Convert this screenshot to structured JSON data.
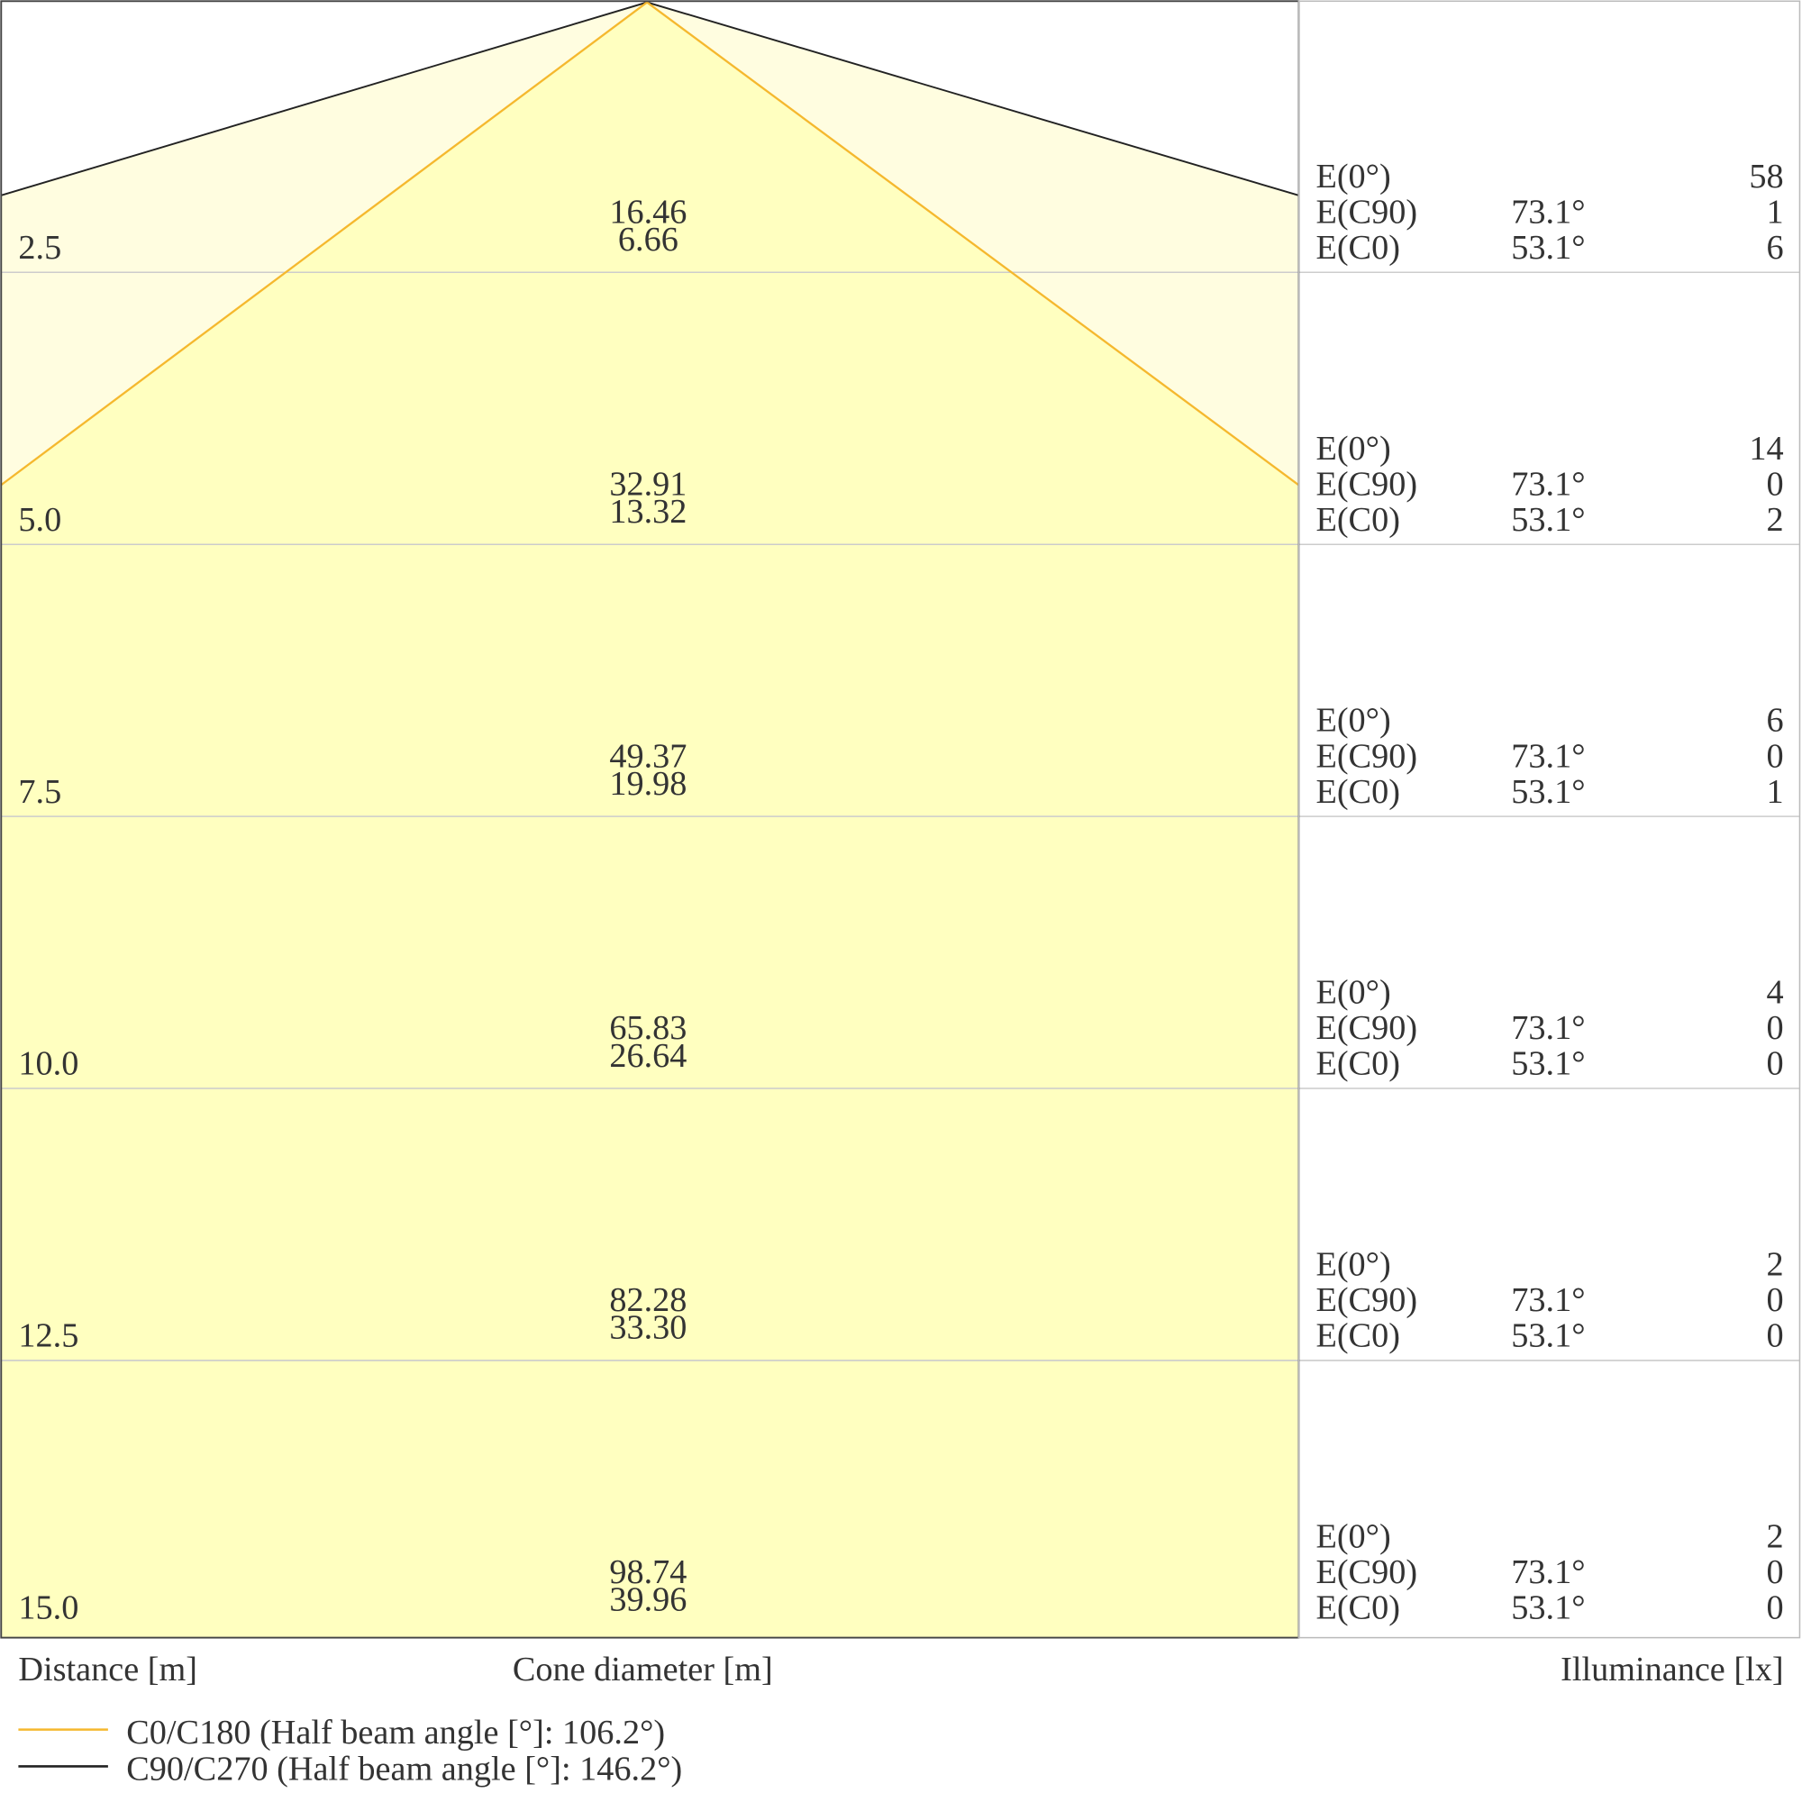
{
  "row_labels": {
    "e0": "E(0°)",
    "c90": "E(C90)",
    "c0": "E(C0)"
  },
  "angles": {
    "c90": "73.1°",
    "c0": "53.1°"
  },
  "rows": [
    {
      "distance": "2.5",
      "cone_c90": "16.46",
      "cone_c0": "6.66",
      "e0": "58",
      "c90": "1",
      "c0": "6"
    },
    {
      "distance": "5.0",
      "cone_c90": "32.91",
      "cone_c0": "13.32",
      "e0": "14",
      "c90": "0",
      "c0": "2"
    },
    {
      "distance": "7.5",
      "cone_c90": "49.37",
      "cone_c0": "19.98",
      "e0": "6",
      "c90": "0",
      "c0": "1"
    },
    {
      "distance": "10.0",
      "cone_c90": "65.83",
      "cone_c0": "26.64",
      "e0": "4",
      "c90": "0",
      "c0": "0"
    },
    {
      "distance": "12.5",
      "cone_c90": "82.28",
      "cone_c0": "33.30",
      "e0": "2",
      "c90": "0",
      "c0": "0"
    },
    {
      "distance": "15.0",
      "cone_c90": "98.74",
      "cone_c0": "39.96",
      "e0": "2",
      "c90": "0",
      "c0": "0"
    }
  ],
  "footer": {
    "distance": "Distance [m]",
    "cone": "Cone diameter [m]",
    "illuminance": "Illuminance [lx]"
  },
  "legend": {
    "c0": "C0/C180 (Half beam angle [°]: 106.2°)",
    "c90": "C90/C270 (Half beam angle [°]: 146.2°)"
  }
}
